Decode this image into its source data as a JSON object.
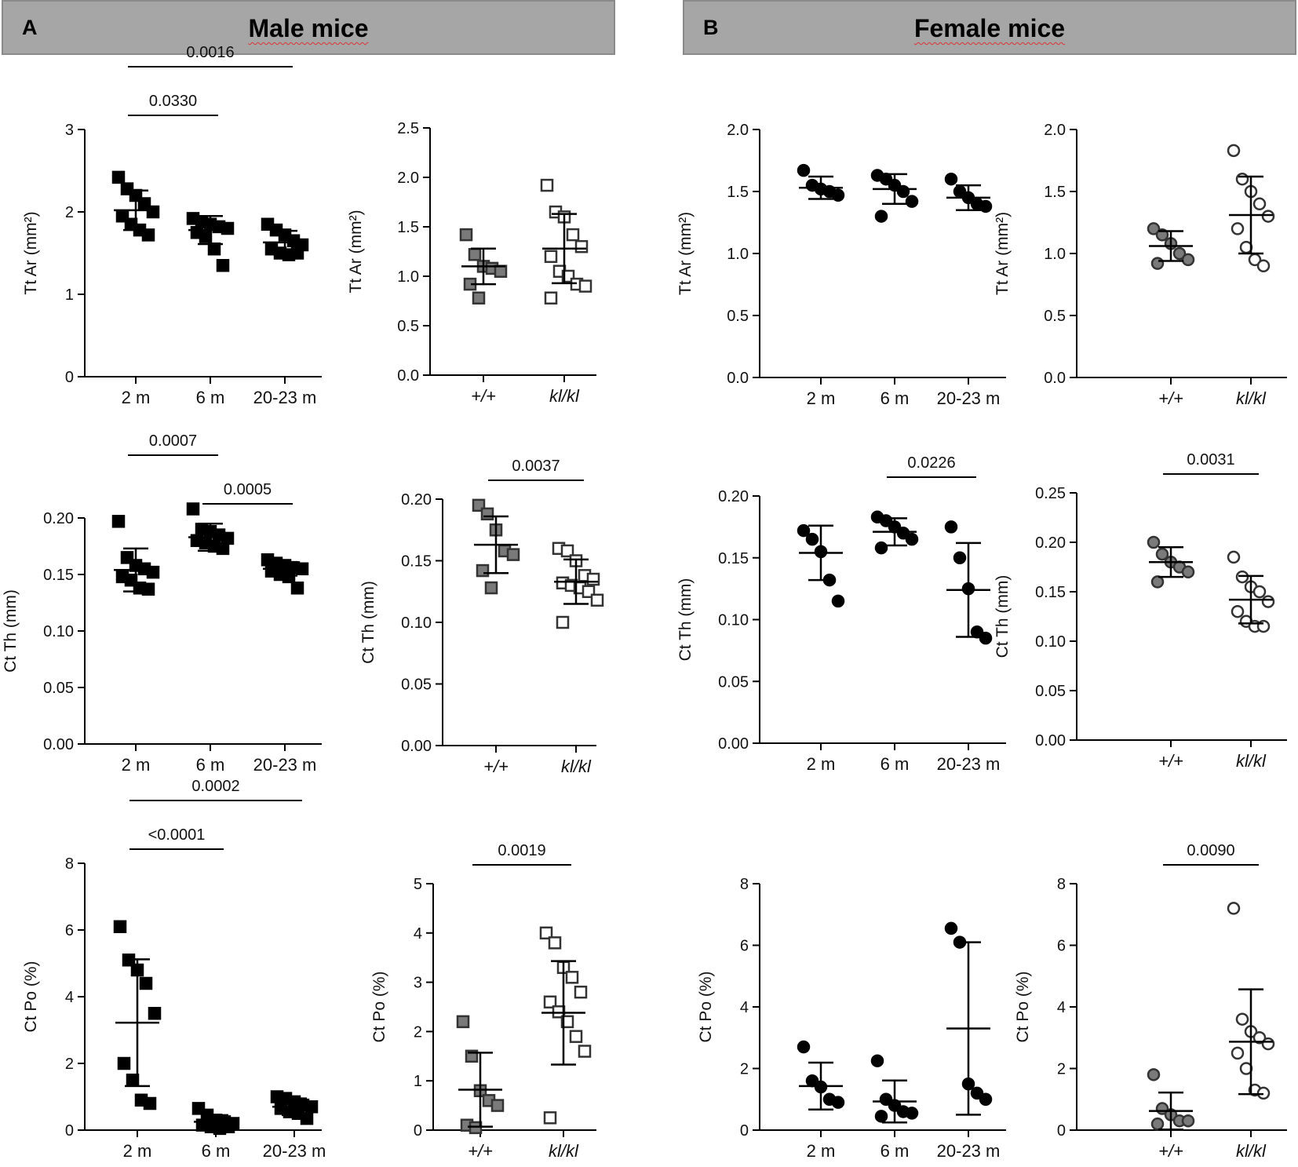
{
  "panels": [
    {
      "letter": "A",
      "title": "Male mice"
    },
    {
      "letter": "B",
      "title": "Female mice"
    }
  ],
  "colors": {
    "black": "#000000",
    "gray": "#7a7a7a",
    "white": "#ffffff",
    "header": "#a6a6a6"
  },
  "chart_data": [
    {
      "id": "male-ttar-age",
      "type": "scatter",
      "panel": "A",
      "ylabel": "Tt Ar (mm²)",
      "ylim": [
        0,
        3
      ],
      "yticks": [
        "0",
        "1",
        "2",
        "3"
      ],
      "categories": [
        "2 m",
        "6 m",
        "20-23 m"
      ],
      "marker": "square",
      "fill": "black",
      "values": [
        [
          2.42,
          2.28,
          2.2,
          2.1,
          2.0,
          1.95,
          1.85,
          1.78,
          1.72
        ],
        [
          1.92,
          1.88,
          1.85,
          1.82,
          1.8,
          1.75,
          1.7,
          1.55,
          1.35
        ],
        [
          1.85,
          1.78,
          1.72,
          1.65,
          1.6,
          1.55,
          1.5,
          1.48,
          1.5
        ]
      ],
      "mean": [
        2.02,
        1.78,
        1.63
      ],
      "sd": [
        0.24,
        0.17,
        0.14
      ],
      "brackets": [
        {
          "from": 0,
          "to": 2,
          "label": "0.0016"
        },
        {
          "from": 0,
          "to": 1,
          "label": "0.0330"
        }
      ]
    },
    {
      "id": "male-ttar-kl",
      "type": "scatter",
      "panel": "A",
      "ylabel": "Tt Ar (mm²)",
      "ylim": [
        0,
        2.5
      ],
      "yticks": [
        "0.0",
        "0.5",
        "1.0",
        "1.5",
        "2.0",
        "2.5"
      ],
      "categories": [
        "+/+",
        "kl/kl"
      ],
      "marker": "square",
      "fill": [
        "gray",
        "white"
      ],
      "values": [
        [
          1.42,
          1.22,
          1.1,
          1.08,
          1.05,
          0.92,
          0.78
        ],
        [
          1.92,
          1.65,
          1.6,
          1.42,
          1.3,
          1.2,
          1.05,
          1.0,
          0.92,
          0.9,
          0.78
        ]
      ],
      "mean": [
        1.1,
        1.28
      ],
      "sd": [
        0.18,
        0.35
      ],
      "brackets": []
    },
    {
      "id": "male-ctth-age",
      "type": "scatter",
      "panel": "A",
      "ylabel": "Ct Th (mm)",
      "ylim": [
        0,
        0.2
      ],
      "yticks": [
        "0.00",
        "0.05",
        "0.10",
        "0.15",
        "0.20"
      ],
      "categories": [
        "2 m",
        "6 m",
        "20-23 m"
      ],
      "marker": "square",
      "fill": "black",
      "values": [
        [
          0.197,
          0.165,
          0.158,
          0.155,
          0.152,
          0.148,
          0.145,
          0.138,
          0.137
        ],
        [
          0.208,
          0.19,
          0.188,
          0.185,
          0.182,
          0.18,
          0.178,
          0.175,
          0.173
        ],
        [
          0.163,
          0.16,
          0.158,
          0.156,
          0.155,
          0.153,
          0.15,
          0.148,
          0.138
        ]
      ],
      "mean": [
        0.154,
        0.183,
        0.155
      ],
      "sd": [
        0.019,
        0.012,
        0.006
      ],
      "brackets": [
        {
          "from": 0,
          "to": 1,
          "label": "0.0007"
        },
        {
          "from": 1,
          "to": 2,
          "label": "0.0005"
        }
      ]
    },
    {
      "id": "male-ctth-kl",
      "type": "scatter",
      "panel": "A",
      "ylabel": "Ct Th (mm)",
      "ylim": [
        0,
        0.2
      ],
      "yticks": [
        "0.00",
        "0.05",
        "0.10",
        "0.15",
        "0.20"
      ],
      "categories": [
        "+/+",
        "kl/kl"
      ],
      "marker": "square",
      "fill": [
        "gray",
        "white"
      ],
      "values": [
        [
          0.195,
          0.188,
          0.175,
          0.158,
          0.155,
          0.142,
          0.128
        ],
        [
          0.16,
          0.158,
          0.15,
          0.138,
          0.135,
          0.132,
          0.13,
          0.128,
          0.125,
          0.118,
          0.1
        ]
      ],
      "mean": [
        0.163,
        0.133
      ],
      "sd": [
        0.023,
        0.018
      ],
      "brackets": [
        {
          "from": 0,
          "to": 1,
          "label": "0.0037"
        }
      ]
    },
    {
      "id": "male-ctpo-age",
      "type": "scatter",
      "panel": "A",
      "ylabel": "Ct Po (%)",
      "ylim": [
        0,
        8
      ],
      "yticks": [
        "0",
        "2",
        "4",
        "6",
        "8"
      ],
      "categories": [
        "2 m",
        "6 m",
        "20-23 m"
      ],
      "marker": "square",
      "fill": "black",
      "values": [
        [
          6.1,
          5.1,
          4.8,
          4.4,
          3.5,
          2.0,
          1.5,
          0.9,
          0.8
        ],
        [
          0.65,
          0.45,
          0.3,
          0.25,
          0.2,
          0.15,
          0.1,
          0.05,
          0.1
        ],
        [
          1.0,
          0.95,
          0.85,
          0.75,
          0.7,
          0.65,
          0.55,
          0.5,
          0.35
        ]
      ],
      "mean": [
        3.22,
        0.25,
        0.7
      ],
      "sd": [
        1.9,
        0.2,
        0.25
      ],
      "brackets": [
        {
          "from": 0,
          "to": 2,
          "label": "0.0002"
        },
        {
          "from": 0,
          "to": 1,
          "label": "<0.0001"
        }
      ]
    },
    {
      "id": "male-ctpo-kl",
      "type": "scatter",
      "panel": "A",
      "ylabel": "Ct Po (%)",
      "ylim": [
        0,
        5
      ],
      "yticks": [
        "0",
        "1",
        "2",
        "3",
        "4",
        "5"
      ],
      "categories": [
        "+/+",
        "kl/kl"
      ],
      "marker": "square",
      "fill": [
        "gray",
        "white"
      ],
      "values": [
        [
          2.2,
          1.5,
          0.8,
          0.6,
          0.5,
          0.1,
          0.05
        ],
        [
          4.0,
          3.8,
          3.3,
          3.1,
          2.8,
          2.6,
          2.4,
          2.2,
          1.9,
          1.6,
          0.25
        ]
      ],
      "mean": [
        0.82,
        2.38
      ],
      "sd": [
        0.75,
        1.05
      ],
      "brackets": [
        {
          "from": 0,
          "to": 1,
          "label": "0.0019"
        }
      ]
    },
    {
      "id": "female-ttar-age",
      "type": "scatter",
      "panel": "B",
      "ylabel": "Tt Ar (mm²)",
      "ylim": [
        0,
        2
      ],
      "yticks": [
        "0.0",
        "0.5",
        "1.0",
        "1.5",
        "2.0"
      ],
      "categories": [
        "2 m",
        "6 m",
        "20-23 m"
      ],
      "marker": "circle",
      "fill": "black",
      "values": [
        [
          1.67,
          1.55,
          1.52,
          1.5,
          1.47
        ],
        [
          1.63,
          1.6,
          1.55,
          1.5,
          1.42,
          1.3
        ],
        [
          1.6,
          1.5,
          1.45,
          1.4,
          1.38
        ]
      ],
      "mean": [
        1.53,
        1.52,
        1.45
      ],
      "sd": [
        0.09,
        0.12,
        0.1
      ],
      "brackets": []
    },
    {
      "id": "female-ttar-kl",
      "type": "scatter",
      "panel": "B",
      "ylabel": "Tt Ar (mm²)",
      "ylim": [
        0,
        2
      ],
      "yticks": [
        "0.0",
        "0.5",
        "1.0",
        "1.5",
        "2.0"
      ],
      "categories": [
        "+/+",
        "kl/kl"
      ],
      "marker": "circle",
      "fill": [
        "gray",
        "white"
      ],
      "values": [
        [
          1.2,
          1.15,
          1.08,
          1.0,
          0.95,
          0.92
        ],
        [
          1.83,
          1.6,
          1.5,
          1.4,
          1.3,
          1.2,
          1.05,
          0.95,
          0.9
        ]
      ],
      "mean": [
        1.06,
        1.31
      ],
      "sd": [
        0.12,
        0.31
      ],
      "brackets": []
    },
    {
      "id": "female-ctth-age",
      "type": "scatter",
      "panel": "B",
      "ylabel": "Ct Th (mm)",
      "ylim": [
        0,
        0.2
      ],
      "yticks": [
        "0.00",
        "0.05",
        "0.10",
        "0.15",
        "0.20"
      ],
      "categories": [
        "2 m",
        "6 m",
        "20-23 m"
      ],
      "marker": "circle",
      "fill": "black",
      "values": [
        [
          0.172,
          0.165,
          0.155,
          0.132,
          0.115
        ],
        [
          0.183,
          0.18,
          0.175,
          0.17,
          0.165,
          0.158
        ],
        [
          0.175,
          0.15,
          0.125,
          0.09,
          0.085
        ]
      ],
      "mean": [
        0.154,
        0.171,
        0.124
      ],
      "sd": [
        0.022,
        0.011,
        0.038
      ],
      "brackets": [
        {
          "from": 1,
          "to": 2,
          "label": "0.0226"
        }
      ]
    },
    {
      "id": "female-ctth-kl",
      "type": "scatter",
      "panel": "B",
      "ylabel": "Ct Th (mm)",
      "ylim": [
        0,
        0.25
      ],
      "yticks": [
        "0.00",
        "0.05",
        "0.10",
        "0.15",
        "0.20",
        "0.25"
      ],
      "categories": [
        "+/+",
        "kl/kl"
      ],
      "marker": "circle",
      "fill": [
        "gray",
        "white"
      ],
      "values": [
        [
          0.2,
          0.188,
          0.18,
          0.175,
          0.17,
          0.16
        ],
        [
          0.185,
          0.165,
          0.155,
          0.15,
          0.14,
          0.13,
          0.12,
          0.115,
          0.115
        ]
      ],
      "mean": [
        0.18,
        0.142
      ],
      "sd": [
        0.015,
        0.024
      ],
      "brackets": [
        {
          "from": 0,
          "to": 1,
          "label": "0.0031"
        }
      ]
    },
    {
      "id": "female-ctpo-age",
      "type": "scatter",
      "panel": "B",
      "ylabel": "Ct Po (%)",
      "ylim": [
        0,
        8
      ],
      "yticks": [
        "0",
        "2",
        "4",
        "6",
        "8"
      ],
      "categories": [
        "2 m",
        "6 m",
        "20-23 m"
      ],
      "marker": "circle",
      "fill": "black",
      "values": [
        [
          2.7,
          1.6,
          1.4,
          1.0,
          0.9
        ],
        [
          2.25,
          1.0,
          0.8,
          0.6,
          0.55,
          0.45
        ],
        [
          6.55,
          6.1,
          1.5,
          1.2,
          1.0
        ]
      ],
      "mean": [
        1.43,
        0.93,
        3.3
      ],
      "sd": [
        0.76,
        0.68,
        2.8
      ],
      "brackets": []
    },
    {
      "id": "female-ctpo-kl",
      "type": "scatter",
      "panel": "B",
      "ylabel": "Ct Po (%)",
      "ylim": [
        0,
        8
      ],
      "yticks": [
        "0",
        "2",
        "4",
        "6",
        "8"
      ],
      "categories": [
        "+/+",
        "kl/kl"
      ],
      "marker": "circle",
      "fill": [
        "gray",
        "white"
      ],
      "values": [
        [
          1.8,
          0.7,
          0.5,
          0.3,
          0.3,
          0.2
        ],
        [
          7.2,
          3.6,
          3.2,
          3.0,
          2.8,
          2.5,
          2.0,
          1.3,
          1.2
        ]
      ],
      "mean": [
        0.62,
        2.87
      ],
      "sd": [
        0.6,
        1.7
      ],
      "brackets": [
        {
          "from": 0,
          "to": 1,
          "label": "0.0090"
        }
      ]
    }
  ]
}
